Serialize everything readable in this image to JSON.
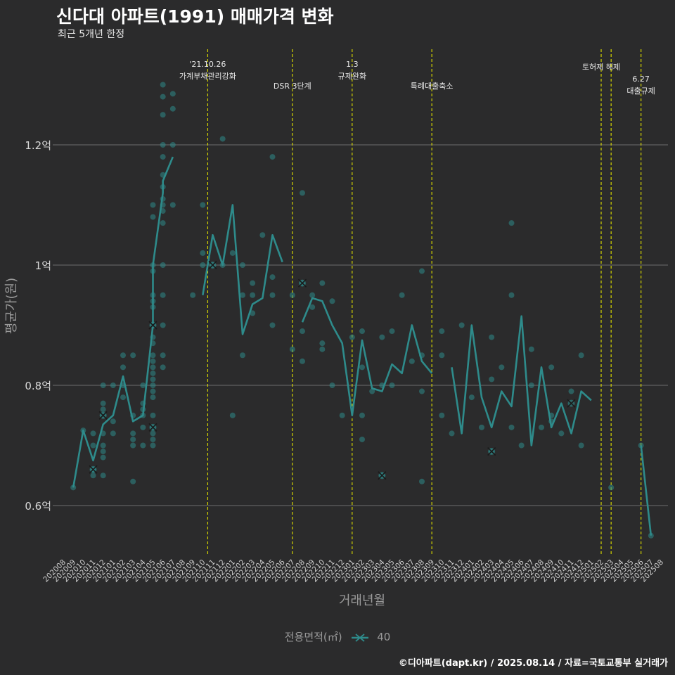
{
  "header": {
    "title": "신다대 아파트(1991) 매매가격 변화",
    "subtitle": "최근 5개년 한정"
  },
  "footer": {
    "credit": "©디아파트(dapt.kr) / 2025.08.14 / 자료=국토교통부 실거래가"
  },
  "legend": {
    "title": "전용면적(㎡)",
    "item_label": "40"
  },
  "colors": {
    "background": "#2b2b2c",
    "series": "#2e8b8b",
    "points": "#2e8b8b",
    "event_line": "#d4d400",
    "grid": "#6e6e6e",
    "cancel_mark": "#1a1a1a"
  },
  "chart_data": {
    "type": "line",
    "xlabel": "거래년월",
    "ylabel": "평균가(원)",
    "x_categories": [
      "202008",
      "202009",
      "202010",
      "202011",
      "202012",
      "202101",
      "202102",
      "202103",
      "202104",
      "202105",
      "202106",
      "202107",
      "202108",
      "202109",
      "202110",
      "202111",
      "202112",
      "202201",
      "202202",
      "202203",
      "202204",
      "202205",
      "202206",
      "202207",
      "202208",
      "202209",
      "202210",
      "202211",
      "202212",
      "202301",
      "202302",
      "202303",
      "202304",
      "202305",
      "202306",
      "202307",
      "202308",
      "202309",
      "202310",
      "202311",
      "202312",
      "202401",
      "202402",
      "202403",
      "202404",
      "202405",
      "202406",
      "202407",
      "202408",
      "202409",
      "202410",
      "202411",
      "202412",
      "202501",
      "202502",
      "202503",
      "202504",
      "202505",
      "202506",
      "202507",
      "202508"
    ],
    "y_ticks": [
      {
        "value": 0.6,
        "label": "0.6억"
      },
      {
        "value": 0.8,
        "label": "0.8억"
      },
      {
        "value": 1.0,
        "label": "1억"
      },
      {
        "value": 1.2,
        "label": "1.2억"
      }
    ],
    "ylim": [
      0.5,
      1.35
    ],
    "y_unit": "억",
    "grid": true,
    "legend_position": "bottom",
    "series": [
      {
        "name": "40",
        "segments": [
          [
            [
              "202009",
              0.63
            ],
            [
              "202010",
              0.725
            ],
            [
              "202011",
              0.675
            ],
            [
              "202012",
              0.735
            ],
            [
              "202101",
              0.75
            ],
            [
              "202102",
              0.815
            ],
            [
              "202103",
              0.74
            ],
            [
              "202104",
              0.75
            ],
            [
              "202105",
              0.9
            ],
            [
              "202105",
              1.0
            ],
            [
              "202106",
              1.12
            ],
            [
              "202106",
              1.14
            ],
            [
              "202107",
              1.18
            ]
          ],
          [
            [
              "202110",
              0.95
            ],
            [
              "202111",
              1.05
            ],
            [
              "202112",
              1.0
            ],
            [
              "202201",
              1.1
            ],
            [
              "202202",
              0.885
            ],
            [
              "202203",
              0.935
            ],
            [
              "202204",
              0.945
            ],
            [
              "202205",
              1.05
            ],
            [
              "202206",
              1.005
            ]
          ],
          [
            [
              "202208",
              0.905
            ],
            [
              "202209",
              0.945
            ],
            [
              "202210",
              0.94
            ],
            [
              "202211",
              0.9
            ],
            [
              "202212",
              0.87
            ],
            [
              "202301",
              0.75
            ],
            [
              "202302",
              0.875
            ],
            [
              "202303",
              0.795
            ],
            [
              "202304",
              0.79
            ],
            [
              "202305",
              0.835
            ],
            [
              "202306",
              0.82
            ],
            [
              "202307",
              0.9
            ],
            [
              "202308",
              0.84
            ],
            [
              "202309",
              0.82
            ]
          ],
          [
            [
              "202311",
              0.83
            ],
            [
              "202312",
              0.72
            ],
            [
              "202401",
              0.9
            ],
            [
              "202402",
              0.78
            ],
            [
              "202403",
              0.73
            ],
            [
              "202404",
              0.79
            ],
            [
              "202405",
              0.765
            ],
            [
              "202406",
              0.915
            ],
            [
              "202407",
              0.7
            ],
            [
              "202408",
              0.83
            ],
            [
              "202409",
              0.73
            ],
            [
              "202410",
              0.77
            ],
            [
              "202411",
              0.72
            ],
            [
              "202412",
              0.79
            ],
            [
              "202501",
              0.775
            ]
          ],
          [
            [
              "202506",
              0.7
            ],
            [
              "202507",
              0.55
            ]
          ]
        ]
      }
    ],
    "points": [
      [
        "202009",
        0.63
      ],
      [
        "202010",
        0.725
      ],
      [
        "202011",
        0.7
      ],
      [
        "202011",
        0.72
      ],
      [
        "202011",
        0.66
      ],
      [
        "202011",
        0.65
      ],
      [
        "202011",
        0.66
      ],
      [
        "202012",
        0.8
      ],
      [
        "202012",
        0.77
      ],
      [
        "202012",
        0.75
      ],
      [
        "202012",
        0.72
      ],
      [
        "202012",
        0.7
      ],
      [
        "202012",
        0.69
      ],
      [
        "202012",
        0.68
      ],
      [
        "202012",
        0.65
      ],
      [
        "202012",
        0.76
      ],
      [
        "202101",
        0.8
      ],
      [
        "202101",
        0.74
      ],
      [
        "202101",
        0.72
      ],
      [
        "202102",
        0.85
      ],
      [
        "202102",
        0.83
      ],
      [
        "202102",
        0.8
      ],
      [
        "202102",
        0.78
      ],
      [
        "202103",
        0.85
      ],
      [
        "202103",
        0.75
      ],
      [
        "202103",
        0.72
      ],
      [
        "202103",
        0.71
      ],
      [
        "202103",
        0.7
      ],
      [
        "202103",
        0.64
      ],
      [
        "202104",
        0.8
      ],
      [
        "202104",
        0.77
      ],
      [
        "202104",
        0.76
      ],
      [
        "202104",
        0.75
      ],
      [
        "202104",
        0.73
      ],
      [
        "202104",
        0.7
      ],
      [
        "202105",
        1.1
      ],
      [
        "202105",
        1.08
      ],
      [
        "202105",
        1.0
      ],
      [
        "202105",
        0.99
      ],
      [
        "202105",
        0.95
      ],
      [
        "202105",
        0.94
      ],
      [
        "202105",
        0.93
      ],
      [
        "202105",
        0.9
      ],
      [
        "202105",
        0.88
      ],
      [
        "202105",
        0.87
      ],
      [
        "202105",
        0.85
      ],
      [
        "202105",
        0.84
      ],
      [
        "202105",
        0.83
      ],
      [
        "202105",
        0.82
      ],
      [
        "202105",
        0.81
      ],
      [
        "202105",
        0.8
      ],
      [
        "202105",
        0.79
      ],
      [
        "202105",
        0.78
      ],
      [
        "202105",
        0.75
      ],
      [
        "202105",
        0.73
      ],
      [
        "202105",
        0.72
      ],
      [
        "202105",
        0.71
      ],
      [
        "202105",
        0.7
      ],
      [
        "202106",
        1.3
      ],
      [
        "202106",
        1.28
      ],
      [
        "202106",
        1.25
      ],
      [
        "202106",
        1.2
      ],
      [
        "202106",
        1.18
      ],
      [
        "202106",
        1.15
      ],
      [
        "202106",
        1.13
      ],
      [
        "202106",
        1.11
      ],
      [
        "202106",
        1.1
      ],
      [
        "202106",
        1.09
      ],
      [
        "202106",
        1.07
      ],
      [
        "202106",
        1.0
      ],
      [
        "202106",
        0.95
      ],
      [
        "202106",
        0.9
      ],
      [
        "202106",
        0.85
      ],
      [
        "202106",
        0.83
      ],
      [
        "202107",
        1.285
      ],
      [
        "202107",
        1.26
      ],
      [
        "202107",
        1.2
      ],
      [
        "202107",
        1.1
      ],
      [
        "202109",
        0.95
      ],
      [
        "202110",
        1.1
      ],
      [
        "202110",
        1.0
      ],
      [
        "202110",
        1.02
      ],
      [
        "202111",
        1.0
      ],
      [
        "202112",
        1.21
      ],
      [
        "202112",
        1.0
      ],
      [
        "202201",
        1.02
      ],
      [
        "202201",
        0.75
      ],
      [
        "202202",
        1.0
      ],
      [
        "202202",
        0.95
      ],
      [
        "202202",
        0.85
      ],
      [
        "202203",
        0.97
      ],
      [
        "202203",
        0.95
      ],
      [
        "202203",
        0.92
      ],
      [
        "202204",
        1.05
      ],
      [
        "202205",
        1.18
      ],
      [
        "202205",
        0.98
      ],
      [
        "202205",
        0.95
      ],
      [
        "202205",
        0.9
      ],
      [
        "202207",
        0.95
      ],
      [
        "202207",
        0.86
      ],
      [
        "202208",
        1.12
      ],
      [
        "202208",
        0.97
      ],
      [
        "202208",
        0.89
      ],
      [
        "202208",
        0.84
      ],
      [
        "202209",
        0.95
      ],
      [
        "202209",
        0.93
      ],
      [
        "202210",
        0.97
      ],
      [
        "202210",
        0.87
      ],
      [
        "202210",
        0.86
      ],
      [
        "202211",
        0.94
      ],
      [
        "202211",
        0.8
      ],
      [
        "202212",
        0.75
      ],
      [
        "202301",
        0.88
      ],
      [
        "202302",
        0.89
      ],
      [
        "202302",
        0.83
      ],
      [
        "202302",
        0.75
      ],
      [
        "202302",
        0.71
      ],
      [
        "202303",
        0.79
      ],
      [
        "202304",
        0.88
      ],
      [
        "202304",
        0.8
      ],
      [
        "202304",
        0.65
      ],
      [
        "202305",
        0.89
      ],
      [
        "202305",
        0.8
      ],
      [
        "202306",
        0.95
      ],
      [
        "202307",
        0.84
      ],
      [
        "202308",
        0.99
      ],
      [
        "202308",
        0.85
      ],
      [
        "202308",
        0.79
      ],
      [
        "202308",
        0.64
      ],
      [
        "202310",
        0.89
      ],
      [
        "202310",
        0.85
      ],
      [
        "202310",
        0.75
      ],
      [
        "202311",
        0.72
      ],
      [
        "202312",
        0.9
      ],
      [
        "202401",
        0.78
      ],
      [
        "202402",
        0.73
      ],
      [
        "202403",
        0.88
      ],
      [
        "202403",
        0.81
      ],
      [
        "202403",
        0.69
      ],
      [
        "202404",
        0.83
      ],
      [
        "202405",
        1.07
      ],
      [
        "202405",
        0.95
      ],
      [
        "202405",
        0.73
      ],
      [
        "202406",
        0.7
      ],
      [
        "202407",
        0.86
      ],
      [
        "202407",
        0.8
      ],
      [
        "202408",
        0.73
      ],
      [
        "202409",
        0.83
      ],
      [
        "202409",
        0.75
      ],
      [
        "202409",
        0.74
      ],
      [
        "202410",
        0.72
      ],
      [
        "202411",
        0.79
      ],
      [
        "202412",
        0.85
      ],
      [
        "202412",
        0.7
      ],
      [
        "202503",
        0.63
      ],
      [
        "202506",
        0.7
      ],
      [
        "202507",
        0.55
      ]
    ],
    "cancelled": [
      [
        "202011",
        0.66
      ],
      [
        "202012",
        0.75
      ],
      [
        "202105",
        0.9
      ],
      [
        "202105",
        0.73
      ],
      [
        "202111",
        1.0
      ],
      [
        "202208",
        0.97
      ],
      [
        "202304",
        0.65
      ],
      [
        "202403",
        0.69
      ],
      [
        "202411",
        0.77
      ]
    ],
    "events": [
      {
        "x": "202110",
        "offset": 0.5,
        "lines": [
          "'21.10.26",
          "가계부채관리강화"
        ],
        "row": 0
      },
      {
        "x": "202207",
        "offset": 0,
        "lines": [
          "DSR 3단계"
        ],
        "row": 2
      },
      {
        "x": "202301",
        "offset": 0,
        "lines": [
          "1.3",
          "규제완화"
        ],
        "row": 0
      },
      {
        "x": "202309",
        "offset": 0,
        "lines": [
          "특례대출축소"
        ],
        "row": 2
      },
      {
        "x": "202502",
        "offset": 0,
        "lines": [
          "토허제 해제"
        ],
        "row": 1
      },
      {
        "x": "202503",
        "offset": 0,
        "lines": [],
        "row": 1
      },
      {
        "x": "202506",
        "offset": 0,
        "lines": [
          "6.27",
          "대출규제"
        ],
        "row": 3
      }
    ]
  }
}
